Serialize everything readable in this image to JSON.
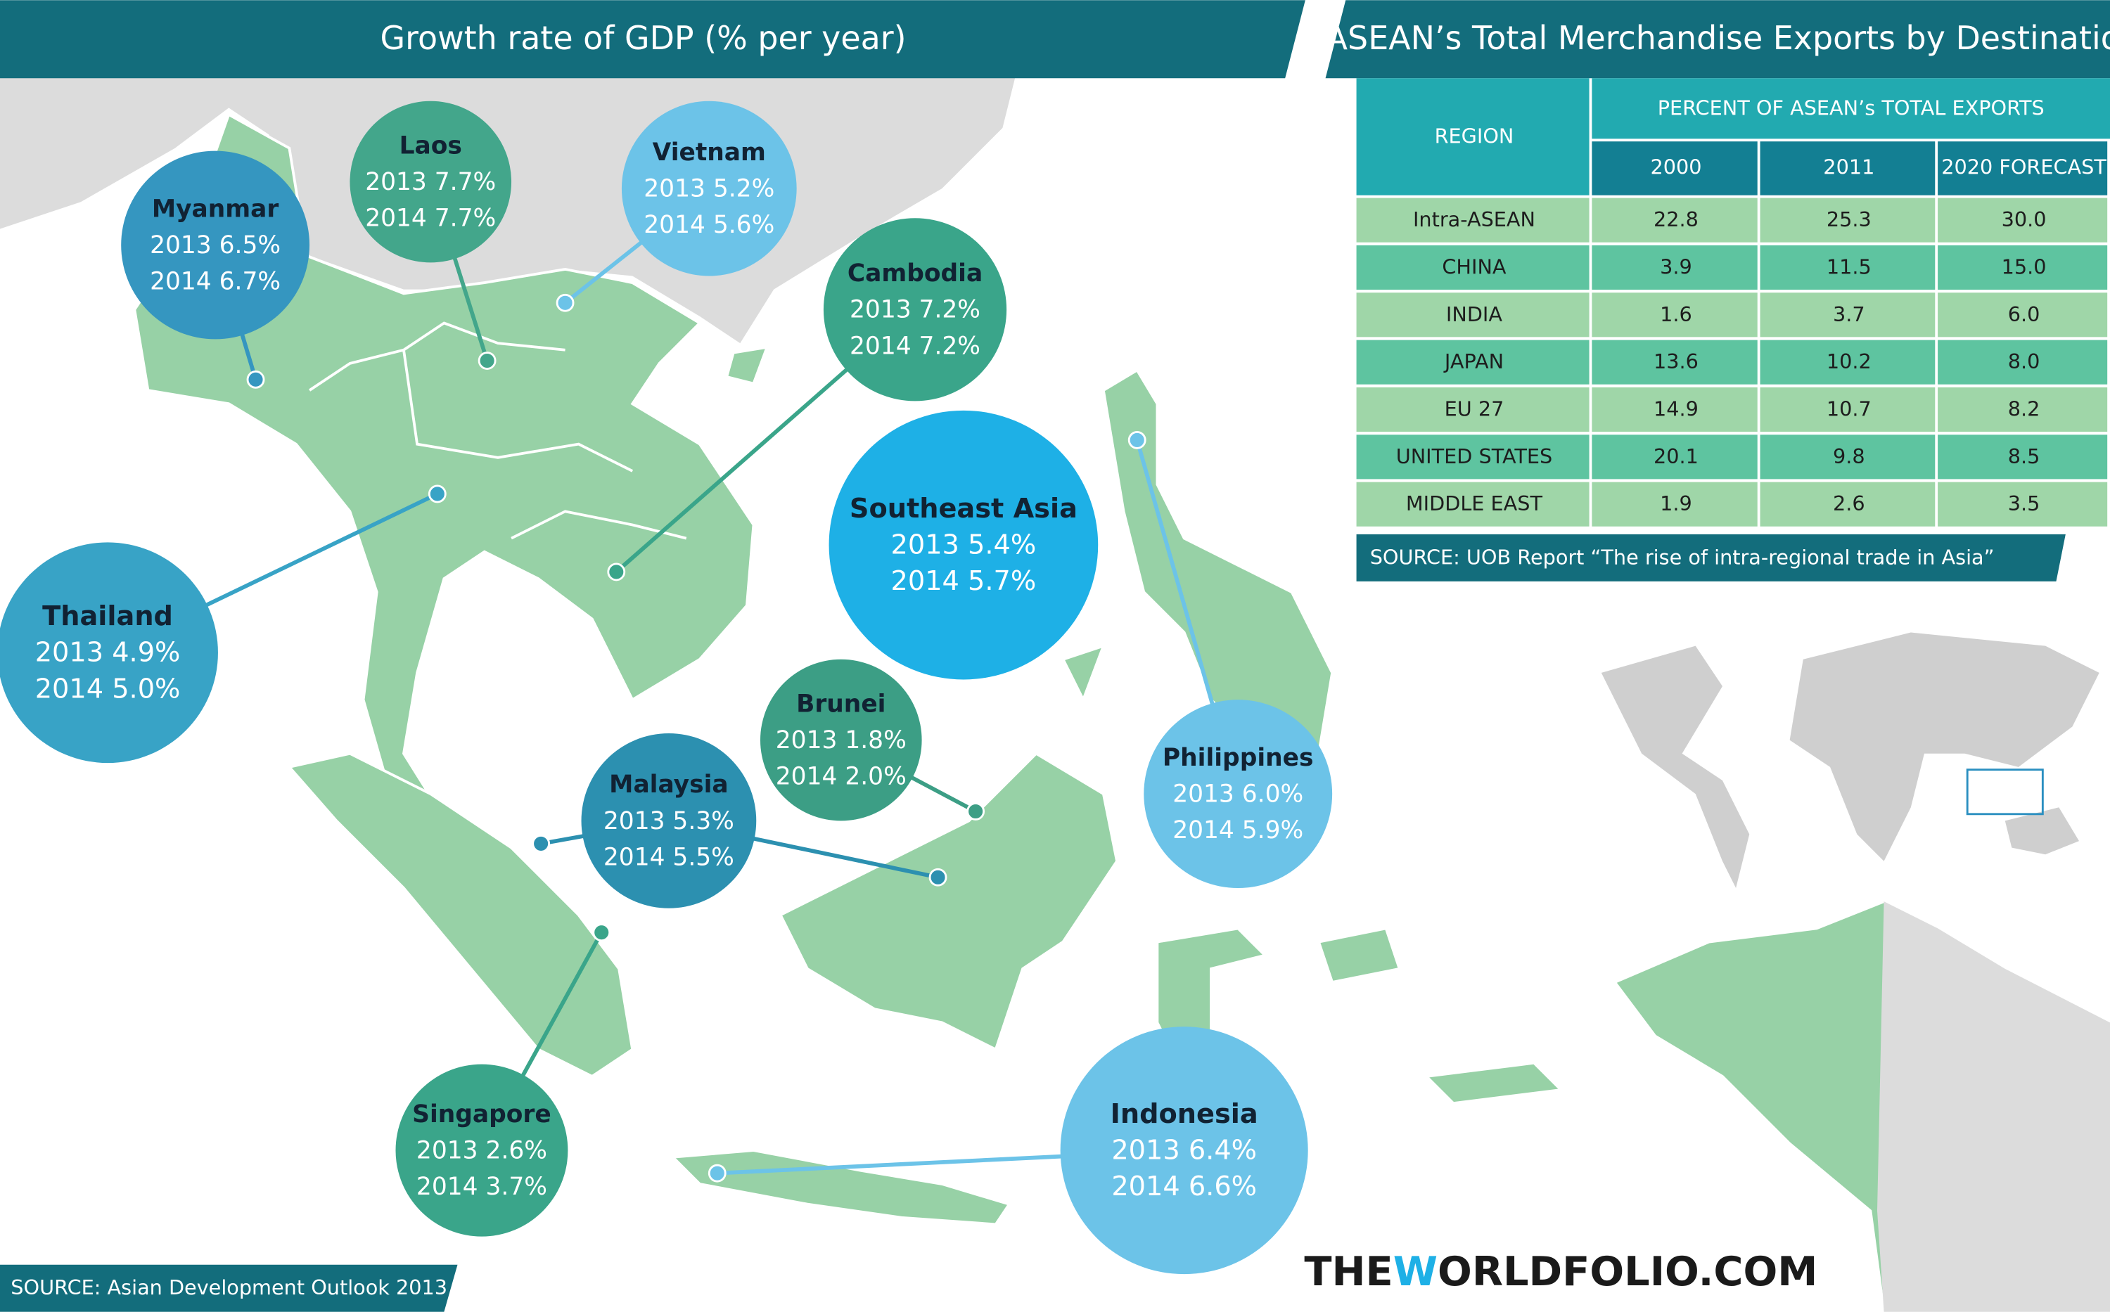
{
  "left_header": {
    "title": "Growth rate of GDP (% per year)"
  },
  "bubbles": [
    {
      "name": "Myanmar",
      "lines": [
        "2013 6.5%",
        "2014 6.7%"
      ]
    },
    {
      "name": "Laos",
      "lines": [
        "2013 7.7%",
        "2014 7.7%"
      ]
    },
    {
      "name": "Vietnam",
      "lines": [
        "2013 5.2%",
        "2014 5.6%"
      ]
    },
    {
      "name": "Cambodia",
      "lines": [
        "2013 7.2%",
        "2014 7.2%"
      ]
    },
    {
      "name": "Southeast Asia",
      "lines": [
        "2013 5.4%",
        "2014 5.7%"
      ]
    },
    {
      "name": "Thailand",
      "lines": [
        "2013 4.9%",
        "2014 5.0%"
      ]
    },
    {
      "name": "Brunei",
      "lines": [
        "2013 1.8%",
        "2014 2.0%"
      ]
    },
    {
      "name": "Malaysia",
      "lines": [
        "2013 5.3%",
        "2014 5.5%"
      ]
    },
    {
      "name": "Philippines",
      "lines": [
        "2013 6.0%",
        "2014 5.9%"
      ]
    },
    {
      "name": "Singapore",
      "lines": [
        "2013 2.6%",
        "2014 3.7%"
      ]
    },
    {
      "name": "Indonesia",
      "lines": [
        "2013 6.4%",
        "2014 6.6%"
      ]
    }
  ],
  "left_source": "SOURCE: Asian Development Outlook 2013",
  "right_header": {
    "title": "ASEAN’s Total Merchandise Exports by Destination"
  },
  "table": {
    "header": {
      "region": "REGION",
      "group": "PERCENT OF ASEAN’s  TOTAL EXPORTS",
      "columns": [
        "2000",
        "2011",
        "2020 FORECAST"
      ]
    },
    "rows": [
      [
        "Intra-ASEAN",
        "22.8",
        "25.3",
        "30.0"
      ],
      [
        "CHINA",
        "3.9",
        "11.5",
        "15.0"
      ],
      [
        "INDIA",
        "1.6",
        "3.7",
        "6.0"
      ],
      [
        "JAPAN",
        "13.6",
        "10.2",
        "8.0"
      ],
      [
        "EU 27",
        "14.9",
        "10.7",
        "8.2"
      ],
      [
        "UNITED STATES",
        "20.1",
        "9.8",
        "8.5"
      ],
      [
        "MIDDLE EAST",
        "1.9",
        "2.6",
        "3.5"
      ]
    ]
  },
  "table_source": "SOURCE: UOB Report “The rise of intra-regional trade in Asia”",
  "brand": [
    "THE",
    "W",
    "ORLDFOLIO.COM"
  ]
}
